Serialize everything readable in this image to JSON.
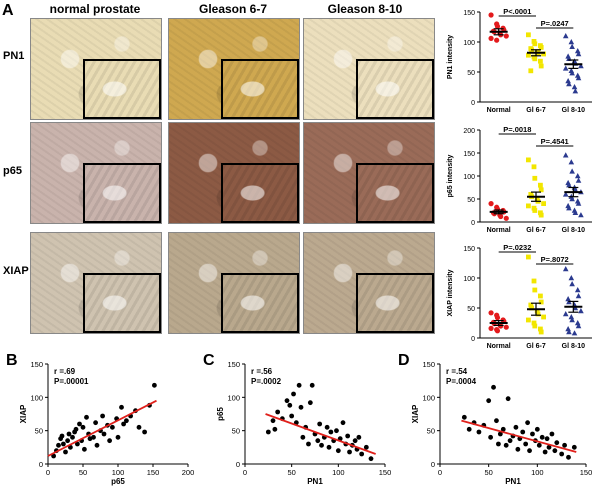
{
  "panel_labels": {
    "A": "A",
    "B": "B",
    "C": "C",
    "D": "D"
  },
  "columns": [
    "normal prostate",
    "Gleason 6-7",
    "Gleason 8-10"
  ],
  "rows": [
    "PN1",
    "p65",
    "XIAP"
  ],
  "stain_colors": {
    "PN1": [
      "#e9dcb4",
      "#cfa850",
      "#ecdfbd"
    ],
    "p65": [
      "#c9b3ac",
      "#8c5a44",
      "#9a6b58"
    ],
    "XIAP": [
      "#cfc3b0",
      "#b9a88d",
      "#bba98f"
    ]
  },
  "chart_data": [
    {
      "type": "scatter",
      "title": "",
      "ylabel": "PN1 intensity",
      "categories": [
        "Normal",
        "Gl 6-7",
        "Gl 8-10"
      ],
      "ylim": [
        0,
        150
      ],
      "yticks": [
        0,
        50,
        100,
        150
      ],
      "series": [
        {
          "name": "Normal",
          "color": "#e31a1c",
          "marker": "circle",
          "mean": 117,
          "sem": 5,
          "values": [
            145,
            130,
            126,
            123,
            120,
            118,
            117,
            115,
            112,
            110,
            106,
            103
          ]
        },
        {
          "name": "Gl 6-7",
          "color": "#f2e600",
          "marker": "square",
          "mean": 82,
          "sem": 5,
          "values": [
            112,
            101,
            97,
            94,
            91,
            89,
            87,
            84,
            82,
            80,
            78,
            75,
            72,
            68,
            60,
            52
          ]
        },
        {
          "name": "Gl 8-10",
          "color": "#2b3a8f",
          "marker": "triangle",
          "mean": 63,
          "sem": 7,
          "values": [
            110,
            100,
            92,
            85,
            80,
            76,
            72,
            68,
            64,
            60,
            56,
            52,
            48,
            44,
            40,
            35,
            30,
            25,
            18
          ]
        }
      ],
      "annotations": [
        {
          "text": "P<.0001",
          "from": 0,
          "to": 1
        },
        {
          "text": "P=.0247",
          "from": 1,
          "to": 2
        }
      ]
    },
    {
      "type": "scatter",
      "title": "",
      "ylabel": "p65 intensity",
      "categories": [
        "Normal",
        "Gl 6-7",
        "Gl 8-10"
      ],
      "ylim": [
        0,
        200
      ],
      "yticks": [
        0,
        50,
        100,
        150,
        200
      ],
      "series": [
        {
          "name": "Normal",
          "color": "#e31a1c",
          "marker": "circle",
          "mean": 22,
          "sem": 4,
          "values": [
            40,
            32,
            28,
            25,
            22,
            20,
            18,
            15,
            12,
            8
          ]
        },
        {
          "name": "Gl 6-7",
          "color": "#f2e600",
          "marker": "square",
          "mean": 55,
          "sem": 10,
          "values": [
            135,
            120,
            95,
            80,
            70,
            60,
            55,
            50,
            45,
            40,
            35,
            30,
            25,
            20,
            15
          ]
        },
        {
          "name": "Gl 8-10",
          "color": "#2b3a8f",
          "marker": "triangle",
          "mean": 65,
          "sem": 10,
          "values": [
            145,
            130,
            110,
            100,
            90,
            85,
            80,
            75,
            70,
            65,
            60,
            55,
            50,
            45,
            40,
            35,
            30,
            25,
            20,
            15
          ]
        }
      ],
      "annotations": [
        {
          "text": "P=.0018",
          "from": 0,
          "to": 1
        },
        {
          "text": "P=.4541",
          "from": 1,
          "to": 2
        }
      ]
    },
    {
      "type": "scatter",
      "title": "",
      "ylabel": "XIAP intensity",
      "categories": [
        "Normal",
        "Gl 6-7",
        "Gl 8-10"
      ],
      "ylim": [
        0,
        150
      ],
      "yticks": [
        0,
        50,
        100,
        150
      ],
      "series": [
        {
          "name": "Normal",
          "color": "#e31a1c",
          "marker": "circle",
          "mean": 25,
          "sem": 4,
          "values": [
            42,
            38,
            34,
            30,
            28,
            26,
            24,
            22,
            20,
            18,
            16,
            14,
            12
          ]
        },
        {
          "name": "Gl 6-7",
          "color": "#f2e600",
          "marker": "square",
          "mean": 48,
          "sem": 10,
          "values": [
            135,
            95,
            80,
            70,
            60,
            55,
            50,
            45,
            40,
            35,
            30,
            25,
            20,
            15,
            10
          ]
        },
        {
          "name": "Gl 8-10",
          "color": "#2b3a8f",
          "marker": "triangle",
          "mean": 52,
          "sem": 9,
          "values": [
            115,
            100,
            90,
            80,
            70,
            65,
            60,
            55,
            50,
            45,
            40,
            35,
            30,
            25,
            20,
            15,
            10,
            8
          ]
        }
      ],
      "annotations": [
        {
          "text": "P=.0232",
          "from": 0,
          "to": 1
        },
        {
          "text": "P=.8072",
          "from": 1,
          "to": 2
        }
      ]
    },
    {
      "type": "scatter",
      "title": "",
      "xlabel": "p65",
      "ylabel": "XIAP",
      "xlim": [
        0,
        200
      ],
      "ylim": [
        0,
        150
      ],
      "xticks": [
        0,
        50,
        100,
        150,
        200
      ],
      "yticks": [
        0,
        50,
        100,
        150
      ],
      "stats": [
        "r =.69",
        "P=.00001"
      ],
      "fit": [
        [
          0,
          12
        ],
        [
          155,
          95
        ]
      ],
      "points": [
        [
          8,
          12
        ],
        [
          12,
          20
        ],
        [
          15,
          28
        ],
        [
          18,
          38
        ],
        [
          20,
          42
        ],
        [
          22,
          30
        ],
        [
          25,
          18
        ],
        [
          28,
          35
        ],
        [
          30,
          45
        ],
        [
          32,
          25
        ],
        [
          35,
          40
        ],
        [
          38,
          48
        ],
        [
          40,
          52
        ],
        [
          42,
          30
        ],
        [
          45,
          60
        ],
        [
          48,
          35
        ],
        [
          50,
          55
        ],
        [
          52,
          22
        ],
        [
          55,
          70
        ],
        [
          58,
          45
        ],
        [
          60,
          38
        ],
        [
          65,
          40
        ],
        [
          68,
          62
        ],
        [
          70,
          28
        ],
        [
          75,
          50
        ],
        [
          78,
          72
        ],
        [
          80,
          45
        ],
        [
          85,
          58
        ],
        [
          88,
          35
        ],
        [
          92,
          55
        ],
        [
          98,
          68
        ],
        [
          100,
          40
        ],
        [
          105,
          85
        ],
        [
          108,
          60
        ],
        [
          112,
          65
        ],
        [
          118,
          72
        ],
        [
          125,
          80
        ],
        [
          130,
          55
        ],
        [
          138,
          48
        ],
        [
          145,
          88
        ],
        [
          152,
          118
        ]
      ]
    },
    {
      "type": "scatter",
      "title": "",
      "xlabel": "PN1",
      "ylabel": "p65",
      "xlim": [
        0,
        150
      ],
      "ylim": [
        0,
        150
      ],
      "xticks": [
        0,
        50,
        100,
        150
      ],
      "yticks": [
        0,
        50,
        100,
        150
      ],
      "stats": [
        "r =.56",
        "P=.0002"
      ],
      "fit": [
        [
          22,
          75
        ],
        [
          140,
          15
        ]
      ],
      "points": [
        [
          25,
          48
        ],
        [
          30,
          65
        ],
        [
          32,
          52
        ],
        [
          35,
          78
        ],
        [
          40,
          68
        ],
        [
          45,
          95
        ],
        [
          48,
          88
        ],
        [
          50,
          72
        ],
        [
          52,
          105
        ],
        [
          55,
          62
        ],
        [
          58,
          118
        ],
        [
          60,
          85
        ],
        [
          62,
          40
        ],
        [
          65,
          55
        ],
        [
          68,
          30
        ],
        [
          70,
          92
        ],
        [
          72,
          118
        ],
        [
          75,
          45
        ],
        [
          78,
          35
        ],
        [
          80,
          60
        ],
        [
          82,
          28
        ],
        [
          85,
          40
        ],
        [
          88,
          55
        ],
        [
          90,
          25
        ],
        [
          92,
          48
        ],
        [
          95,
          35
        ],
        [
          98,
          50
        ],
        [
          100,
          20
        ],
        [
          102,
          38
        ],
        [
          105,
          62
        ],
        [
          108,
          30
        ],
        [
          110,
          42
        ],
        [
          112,
          18
        ],
        [
          115,
          28
        ],
        [
          118,
          35
        ],
        [
          120,
          22
        ],
        [
          122,
          40
        ],
        [
          125,
          15
        ],
        [
          130,
          25
        ],
        [
          135,
          8
        ]
      ]
    },
    {
      "type": "scatter",
      "title": "",
      "xlabel": "PN1",
      "ylabel": "XIAP",
      "xlim": [
        0,
        150
      ],
      "ylim": [
        0,
        150
      ],
      "xticks": [
        0,
        50,
        100,
        150
      ],
      "yticks": [
        0,
        50,
        100,
        150
      ],
      "stats": [
        "r =.54",
        "P=.0004"
      ],
      "fit": [
        [
          22,
          65
        ],
        [
          140,
          18
        ]
      ],
      "points": [
        [
          25,
          70
        ],
        [
          30,
          52
        ],
        [
          35,
          62
        ],
        [
          40,
          48
        ],
        [
          45,
          58
        ],
        [
          50,
          95
        ],
        [
          52,
          40
        ],
        [
          55,
          115
        ],
        [
          58,
          65
        ],
        [
          60,
          30
        ],
        [
          62,
          45
        ],
        [
          65,
          52
        ],
        [
          68,
          28
        ],
        [
          70,
          98
        ],
        [
          72,
          35
        ],
        [
          75,
          42
        ],
        [
          78,
          55
        ],
        [
          80,
          22
        ],
        [
          82,
          38
        ],
        [
          85,
          48
        ],
        [
          88,
          30
        ],
        [
          90,
          62
        ],
        [
          92,
          20
        ],
        [
          95,
          45
        ],
        [
          98,
          35
        ],
        [
          100,
          52
        ],
        [
          102,
          28
        ],
        [
          105,
          40
        ],
        [
          108,
          18
        ],
        [
          110,
          38
        ],
        [
          112,
          25
        ],
        [
          115,
          45
        ],
        [
          118,
          20
        ],
        [
          120,
          32
        ],
        [
          125,
          15
        ],
        [
          128,
          28
        ],
        [
          132,
          10
        ],
        [
          138,
          25
        ]
      ]
    }
  ]
}
